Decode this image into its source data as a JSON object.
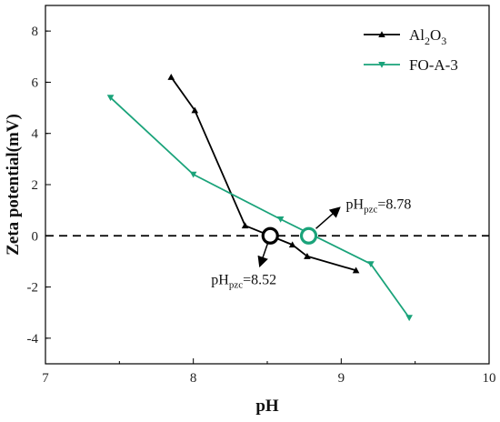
{
  "chart_data": {
    "type": "line",
    "xlabel": "pH",
    "ylabel": "Zeta potential(mV)",
    "xlim": [
      7,
      10
    ],
    "ylim": [
      -5,
      9
    ],
    "xticks": [
      "7",
      "8",
      "9",
      "10"
    ],
    "yticks": [
      "-4",
      "-2",
      "0",
      "2",
      "4",
      "6",
      "8"
    ],
    "reference_line": {
      "y": 0,
      "style": "dashed"
    },
    "legend_position": "top-right",
    "series": [
      {
        "name_main": "Al",
        "name_sub1": "2",
        "name_mid": "O",
        "name_sub2": "3",
        "color": "#000000",
        "marker": "triangle-up",
        "x": [
          7.85,
          8.01,
          8.35,
          8.67,
          8.77,
          9.1
        ],
        "y": [
          6.2,
          4.9,
          0.4,
          -0.35,
          -0.8,
          -1.35
        ]
      },
      {
        "name": "FO-A-3",
        "color": "#1aa37a",
        "marker": "triangle-down",
        "x": [
          7.44,
          8.0,
          8.59,
          9.2,
          9.46
        ],
        "y": [
          5.4,
          2.4,
          0.65,
          -1.1,
          -3.2
        ]
      }
    ],
    "annotations": [
      {
        "pre": "pH",
        "sub": "pzc",
        "post": "=8.52",
        "x": 8.52,
        "y": 0,
        "color": "#000000"
      },
      {
        "pre": "pH",
        "sub": "pzc",
        "post": "=8.78",
        "x": 8.78,
        "y": 0,
        "color": "#1aa37a"
      }
    ]
  }
}
